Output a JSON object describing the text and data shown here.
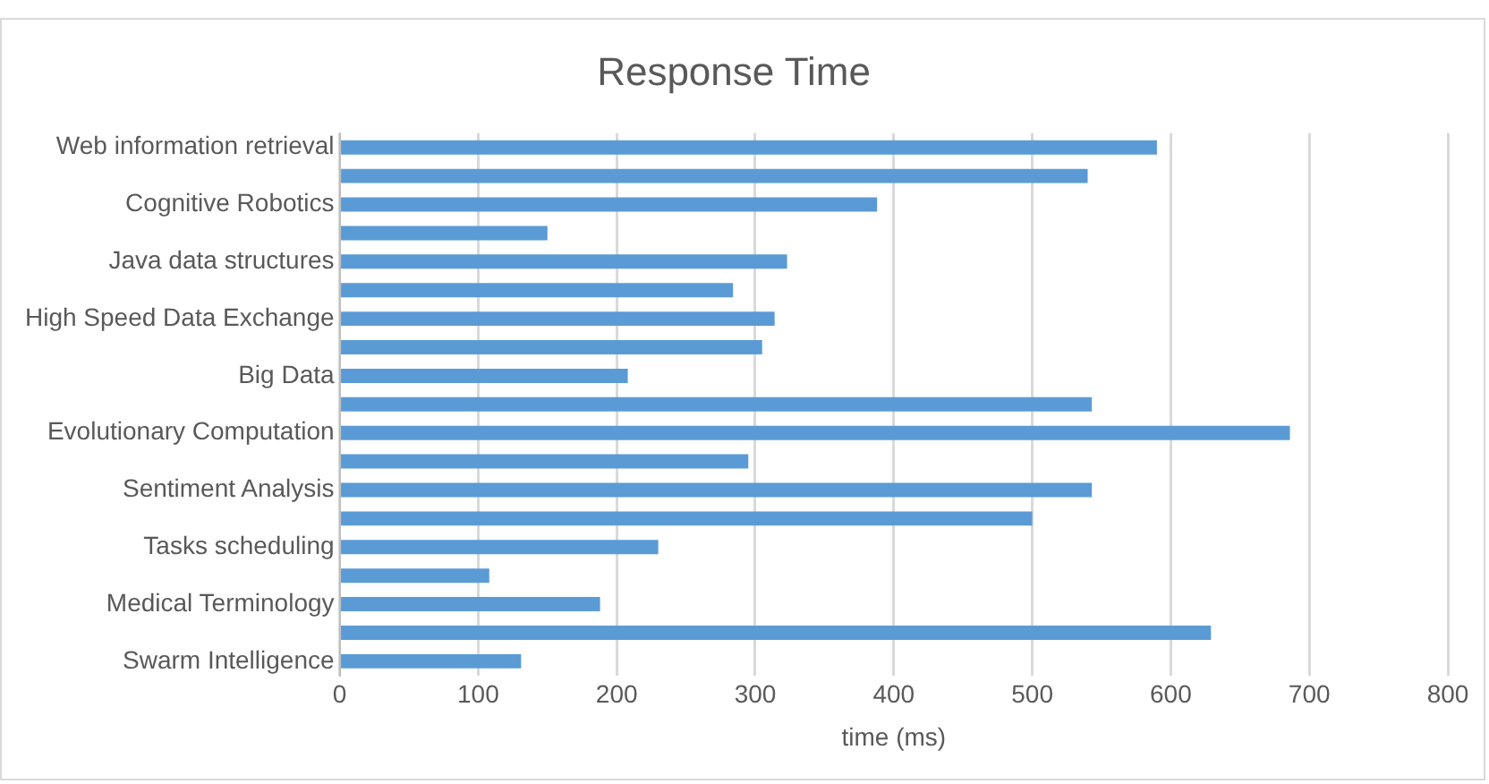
{
  "chart_data": {
    "type": "bar",
    "orientation": "horizontal",
    "title": "Response Time",
    "xlabel": "time (ms)",
    "categories": [
      "Web information retrieval",
      null,
      "Cognitive Robotics",
      null,
      "Java data structures",
      null,
      "High Speed Data Exchange",
      null,
      "Big Data",
      null,
      "Evolutionary Computation",
      null,
      "Sentiment Analysis",
      null,
      "Tasks scheduling",
      null,
      "Medical Terminology",
      null,
      "Swarm Intelligence"
    ],
    "values": [
      590,
      540,
      388,
      150,
      323,
      284,
      314,
      305,
      208,
      543,
      686,
      295,
      543,
      500,
      230,
      108,
      188,
      629,
      131
    ],
    "color": "#5b9bd5",
    "xlim": [
      0,
      800
    ],
    "xticks": [
      0,
      100,
      200,
      300,
      400,
      500,
      600,
      700,
      800
    ],
    "grid": "x",
    "legend": false
  }
}
